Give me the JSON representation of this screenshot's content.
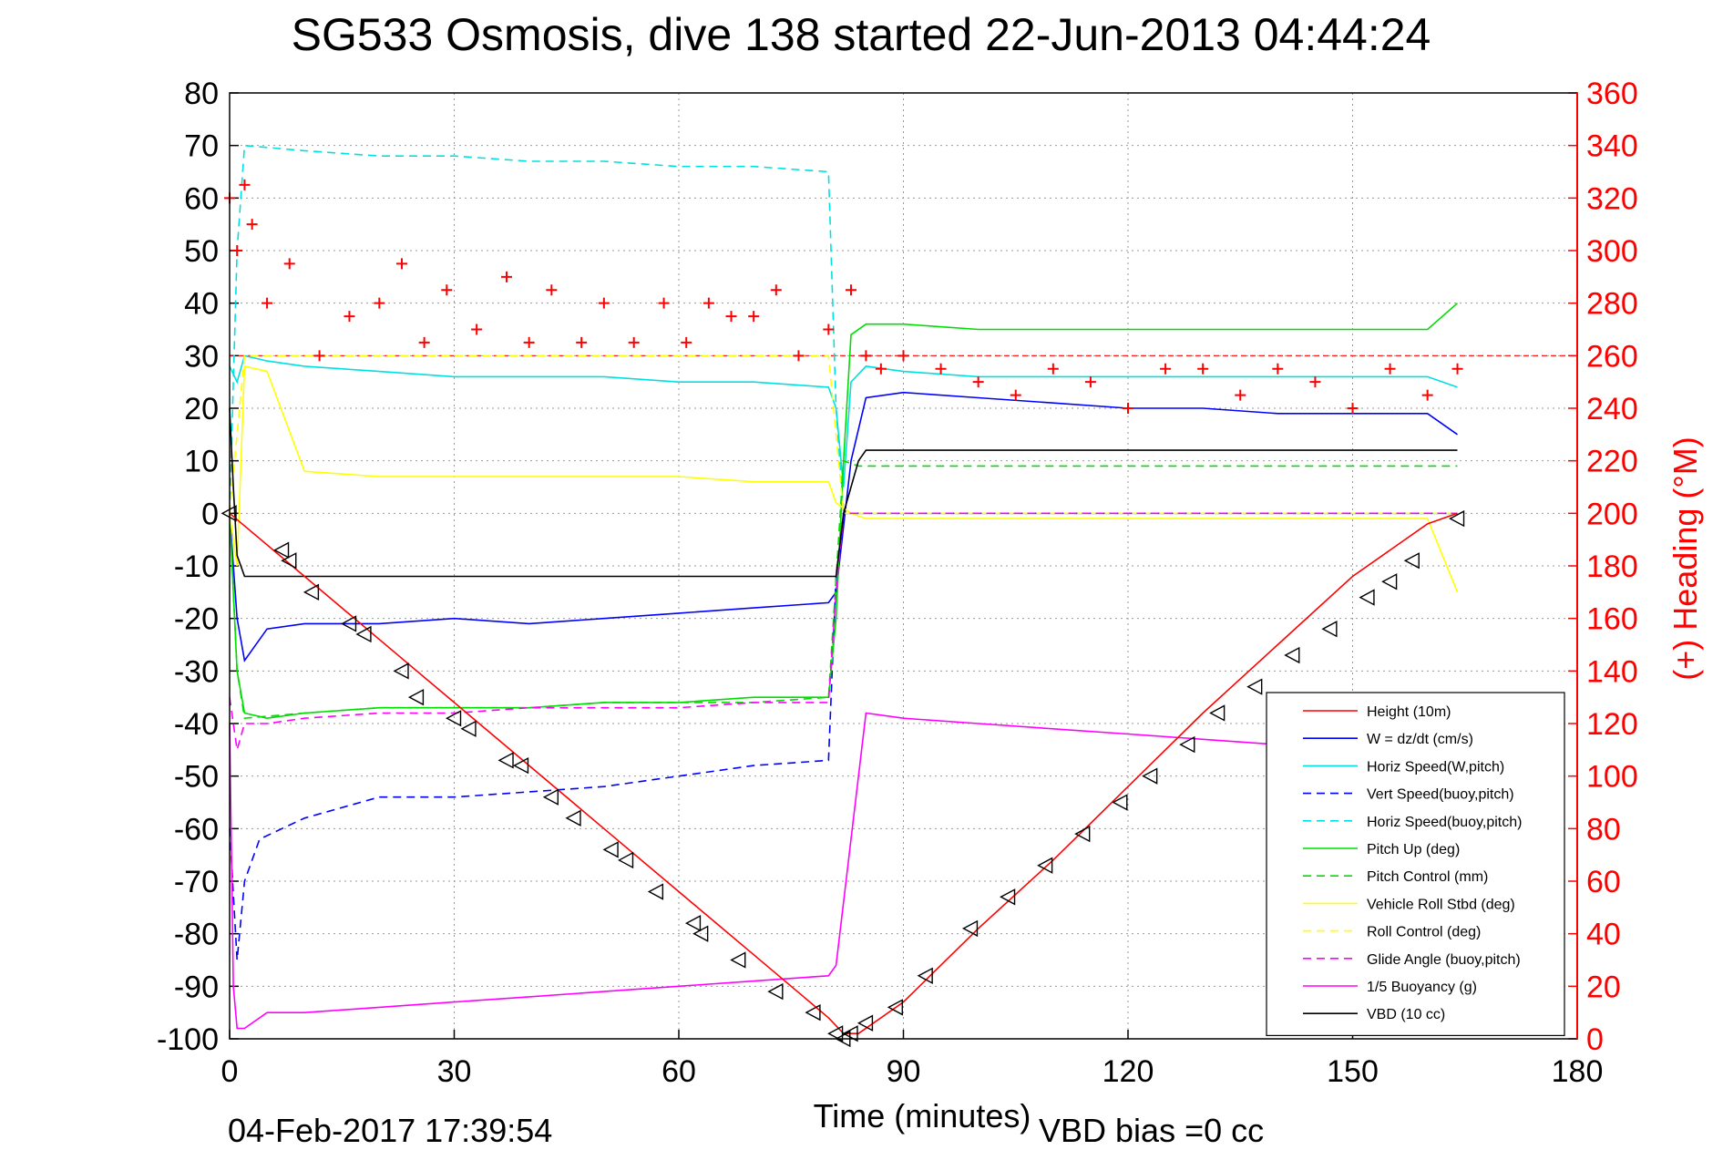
{
  "chart_data": {
    "type": "line",
    "title": "SG533 Osmosis, dive 138 started 22-Jun-2013 04:44:24",
    "xlabel": "Time (minutes)",
    "ylabel_right": "(+) Heading (°M)",
    "xlim": [
      0,
      180
    ],
    "ylim": [
      -100,
      80
    ],
    "ylim_right": [
      0,
      360
    ],
    "x_ticks": [
      "0",
      "30",
      "60",
      "90",
      "120",
      "150",
      "180"
    ],
    "y_ticks": [
      "80",
      "70",
      "60",
      "50",
      "40",
      "30",
      "20",
      "10",
      "0",
      "-10",
      "-20",
      "-30",
      "-40",
      "-50",
      "-60",
      "-70",
      "-80",
      "-90",
      "-100"
    ],
    "y_ticks_right": [
      "360",
      "340",
      "320",
      "300",
      "280",
      "260",
      "240",
      "220",
      "200",
      "180",
      "160",
      "140",
      "120",
      "100",
      "80",
      "60",
      "40",
      "20",
      "0"
    ],
    "grid": true,
    "legend_position": "lower-right",
    "footer_date": "04-Feb-2017 17:39:54",
    "footer_note": "VBD bias =0 cc",
    "heading_reference": 260,
    "series": [
      {
        "name": "Height (10m)",
        "color": "#ff0000",
        "style": "solid",
        "x": [
          0,
          10,
          20,
          30,
          40,
          50,
          60,
          70,
          80,
          82,
          84,
          90,
          100,
          110,
          120,
          130,
          140,
          150,
          160,
          164
        ],
        "y": [
          0,
          -12,
          -24,
          -36,
          -48,
          -60,
          -72,
          -84,
          -96,
          -99,
          -99,
          -93,
          -79,
          -66,
          -52,
          -38,
          -25,
          -12,
          -2,
          0
        ]
      },
      {
        "name": "W = dz/dt (cm/s)",
        "color": "#0000ff",
        "style": "solid",
        "x": [
          0,
          1,
          2,
          5,
          10,
          20,
          30,
          40,
          50,
          60,
          70,
          80,
          81,
          83,
          85,
          90,
          100,
          110,
          120,
          130,
          140,
          150,
          160,
          164
        ],
        "y": [
          0,
          -20,
          -28,
          -22,
          -21,
          -21,
          -20,
          -21,
          -20,
          -19,
          -18,
          -17,
          -15,
          10,
          22,
          23,
          22,
          21,
          20,
          20,
          19,
          19,
          19,
          15
        ]
      },
      {
        "name": "Horiz Speed(W,pitch)",
        "color": "#00e0e0",
        "style": "solid",
        "x": [
          0,
          1,
          2,
          5,
          10,
          20,
          30,
          40,
          50,
          60,
          70,
          80,
          81,
          82,
          83,
          85,
          90,
          100,
          110,
          120,
          130,
          140,
          150,
          160,
          164
        ],
        "y": [
          28,
          25,
          30,
          29,
          28,
          27,
          26,
          26,
          26,
          25,
          25,
          24,
          20,
          5,
          25,
          28,
          27,
          26,
          26,
          26,
          26,
          26,
          26,
          26,
          24
        ]
      },
      {
        "name": "Vert Speed(buoy,pitch)",
        "color": "#0000ff",
        "style": "dashed",
        "x": [
          0,
          1,
          2,
          4,
          7,
          10,
          20,
          30,
          40,
          50,
          60,
          70,
          80,
          81,
          82,
          84,
          90,
          120,
          150,
          164
        ],
        "y": [
          -60,
          -85,
          -70,
          -62,
          -60,
          -58,
          -54,
          -54,
          -53,
          -52,
          -50,
          -48,
          -47,
          -12,
          0,
          0,
          0,
          0,
          0,
          0
        ]
      },
      {
        "name": "Horiz Speed(buoy,pitch)",
        "color": "#00e0e0",
        "style": "dashed",
        "x": [
          0,
          1,
          2,
          10,
          20,
          30,
          40,
          50,
          60,
          70,
          80,
          81,
          82,
          84,
          90,
          120,
          150,
          164
        ],
        "y": [
          0,
          50,
          70,
          69,
          68,
          68,
          67,
          67,
          66,
          66,
          65,
          20,
          0,
          0,
          0,
          0,
          0,
          0
        ]
      },
      {
        "name": "Pitch Up (deg)",
        "color": "#00dd00",
        "style": "solid",
        "x": [
          0,
          1,
          2,
          5,
          10,
          20,
          30,
          40,
          50,
          60,
          70,
          80,
          81,
          82,
          83,
          85,
          90,
          100,
          110,
          120,
          130,
          140,
          150,
          160,
          164
        ],
        "y": [
          0,
          -30,
          -38,
          -39,
          -38,
          -37,
          -37,
          -37,
          -36,
          -36,
          -35,
          -35,
          -20,
          10,
          34,
          36,
          36,
          35,
          35,
          35,
          35,
          35,
          35,
          35,
          40
        ]
      },
      {
        "name": "Pitch Control (mm)",
        "color": "#00dd00",
        "style": "dashed",
        "x": [
          0,
          1,
          2,
          10,
          20,
          30,
          40,
          50,
          60,
          70,
          80,
          82,
          84,
          90,
          120,
          150,
          164
        ],
        "y": [
          0,
          -30,
          -39,
          -38,
          -37,
          -37,
          -37,
          -36,
          -36,
          -36,
          -35,
          10,
          9,
          9,
          9,
          9,
          9
        ]
      },
      {
        "name": "Vehicle Roll Stbd (deg)",
        "color": "#ffff00",
        "style": "solid",
        "x": [
          0,
          1,
          2,
          5,
          10,
          20,
          30,
          40,
          50,
          60,
          70,
          80,
          81,
          83,
          85,
          90,
          100,
          110,
          120,
          130,
          140,
          150,
          160,
          164
        ],
        "y": [
          0,
          -10,
          28,
          27,
          8,
          7,
          7,
          7,
          7,
          7,
          6,
          6,
          2,
          0,
          -1,
          -1,
          -1,
          -1,
          -1,
          -1,
          -1,
          -1,
          -1,
          -15
        ]
      },
      {
        "name": "Roll Control (deg)",
        "color": "#ffff00",
        "style": "dashed",
        "x": [
          0,
          2,
          10,
          20,
          30,
          40,
          50,
          60,
          70,
          80,
          82,
          84,
          90,
          120,
          150,
          164
        ],
        "y": [
          0,
          30,
          30,
          30,
          30,
          30,
          30,
          30,
          30,
          30,
          0,
          0,
          0,
          0,
          0,
          0
        ]
      },
      {
        "name": "Glide Angle (buoy,pitch)",
        "color": "#ff00ff",
        "style": "dashed",
        "x": [
          0,
          1,
          2,
          5,
          10,
          20,
          30,
          40,
          50,
          60,
          70,
          80,
          81,
          82,
          84,
          90,
          120,
          150,
          164
        ],
        "y": [
          -35,
          -45,
          -40,
          -40,
          -39,
          -38,
          -38,
          -37,
          -37,
          -37,
          -36,
          -36,
          -15,
          0,
          0,
          0,
          0,
          0,
          0
        ]
      },
      {
        "name": "1/5 Buoyancy (g)",
        "color": "#ff00ff",
        "style": "solid",
        "x": [
          0,
          0.5,
          1,
          2,
          5,
          10,
          20,
          30,
          40,
          50,
          60,
          70,
          80,
          81,
          85,
          90,
          100,
          110,
          120,
          130,
          140,
          150,
          160,
          164
        ],
        "y": [
          -40,
          -90,
          -98,
          -98,
          -95,
          -95,
          -94,
          -93,
          -92,
          -91,
          -90,
          -89,
          -88,
          -86,
          -38,
          -39,
          -40,
          -41,
          -42,
          -43,
          -44,
          -45,
          -46,
          -46
        ]
      },
      {
        "name": "VBD (10 cc)",
        "color": "#000000",
        "style": "solid",
        "x": [
          0,
          0.5,
          1,
          2,
          10,
          20,
          40,
          60,
          80,
          81,
          82,
          84,
          85,
          90,
          120,
          150,
          164
        ],
        "y": [
          20,
          5,
          -8,
          -12,
          -12,
          -12,
          -12,
          -12,
          -12,
          -12,
          0,
          10,
          12,
          12,
          12,
          12,
          12
        ]
      }
    ],
    "heading": {
      "name": "(+) Heading",
      "axis": "right",
      "marker": "+",
      "color": "#ff0000",
      "x": [
        0,
        1,
        2,
        3,
        5,
        8,
        12,
        16,
        20,
        23,
        26,
        29,
        33,
        37,
        40,
        43,
        47,
        50,
        54,
        58,
        61,
        64,
        67,
        70,
        73,
        76,
        80,
        83,
        85,
        87,
        90,
        95,
        100,
        105,
        110,
        115,
        120,
        125,
        130,
        135,
        140,
        145,
        150,
        155,
        160,
        164
      ],
      "y": [
        320,
        300,
        325,
        310,
        280,
        295,
        260,
        275,
        280,
        295,
        265,
        285,
        270,
        290,
        265,
        285,
        265,
        280,
        265,
        280,
        265,
        280,
        275,
        275,
        285,
        260,
        270,
        285,
        260,
        255,
        260,
        255,
        250,
        245,
        255,
        250,
        240,
        255,
        255,
        245,
        255,
        250,
        240,
        255,
        245,
        255
      ]
    },
    "markers": {
      "name": "Height samples",
      "marker": "triangle",
      "color": "#000000",
      "x": [
        0,
        7,
        8,
        11,
        16,
        18,
        23,
        25,
        30,
        32,
        37,
        39,
        43,
        46,
        51,
        53,
        57,
        62,
        63,
        68,
        73,
        78,
        81,
        82,
        83,
        85,
        89,
        93,
        99,
        104,
        109,
        114,
        119,
        123,
        128,
        132,
        137,
        142,
        147,
        152,
        155,
        158,
        164
      ],
      "y": [
        0,
        -7,
        -9,
        -15,
        -21,
        -23,
        -30,
        -35,
        -39,
        -41,
        -47,
        -48,
        -54,
        -58,
        -64,
        -66,
        -72,
        -78,
        -80,
        -85,
        -91,
        -95,
        -99,
        -100,
        -99,
        -97,
        -94,
        -88,
        -79,
        -73,
        -67,
        -61,
        -55,
        -50,
        -44,
        -38,
        -33,
        -27,
        -22,
        -16,
        -13,
        -9,
        -1
      ]
    }
  }
}
